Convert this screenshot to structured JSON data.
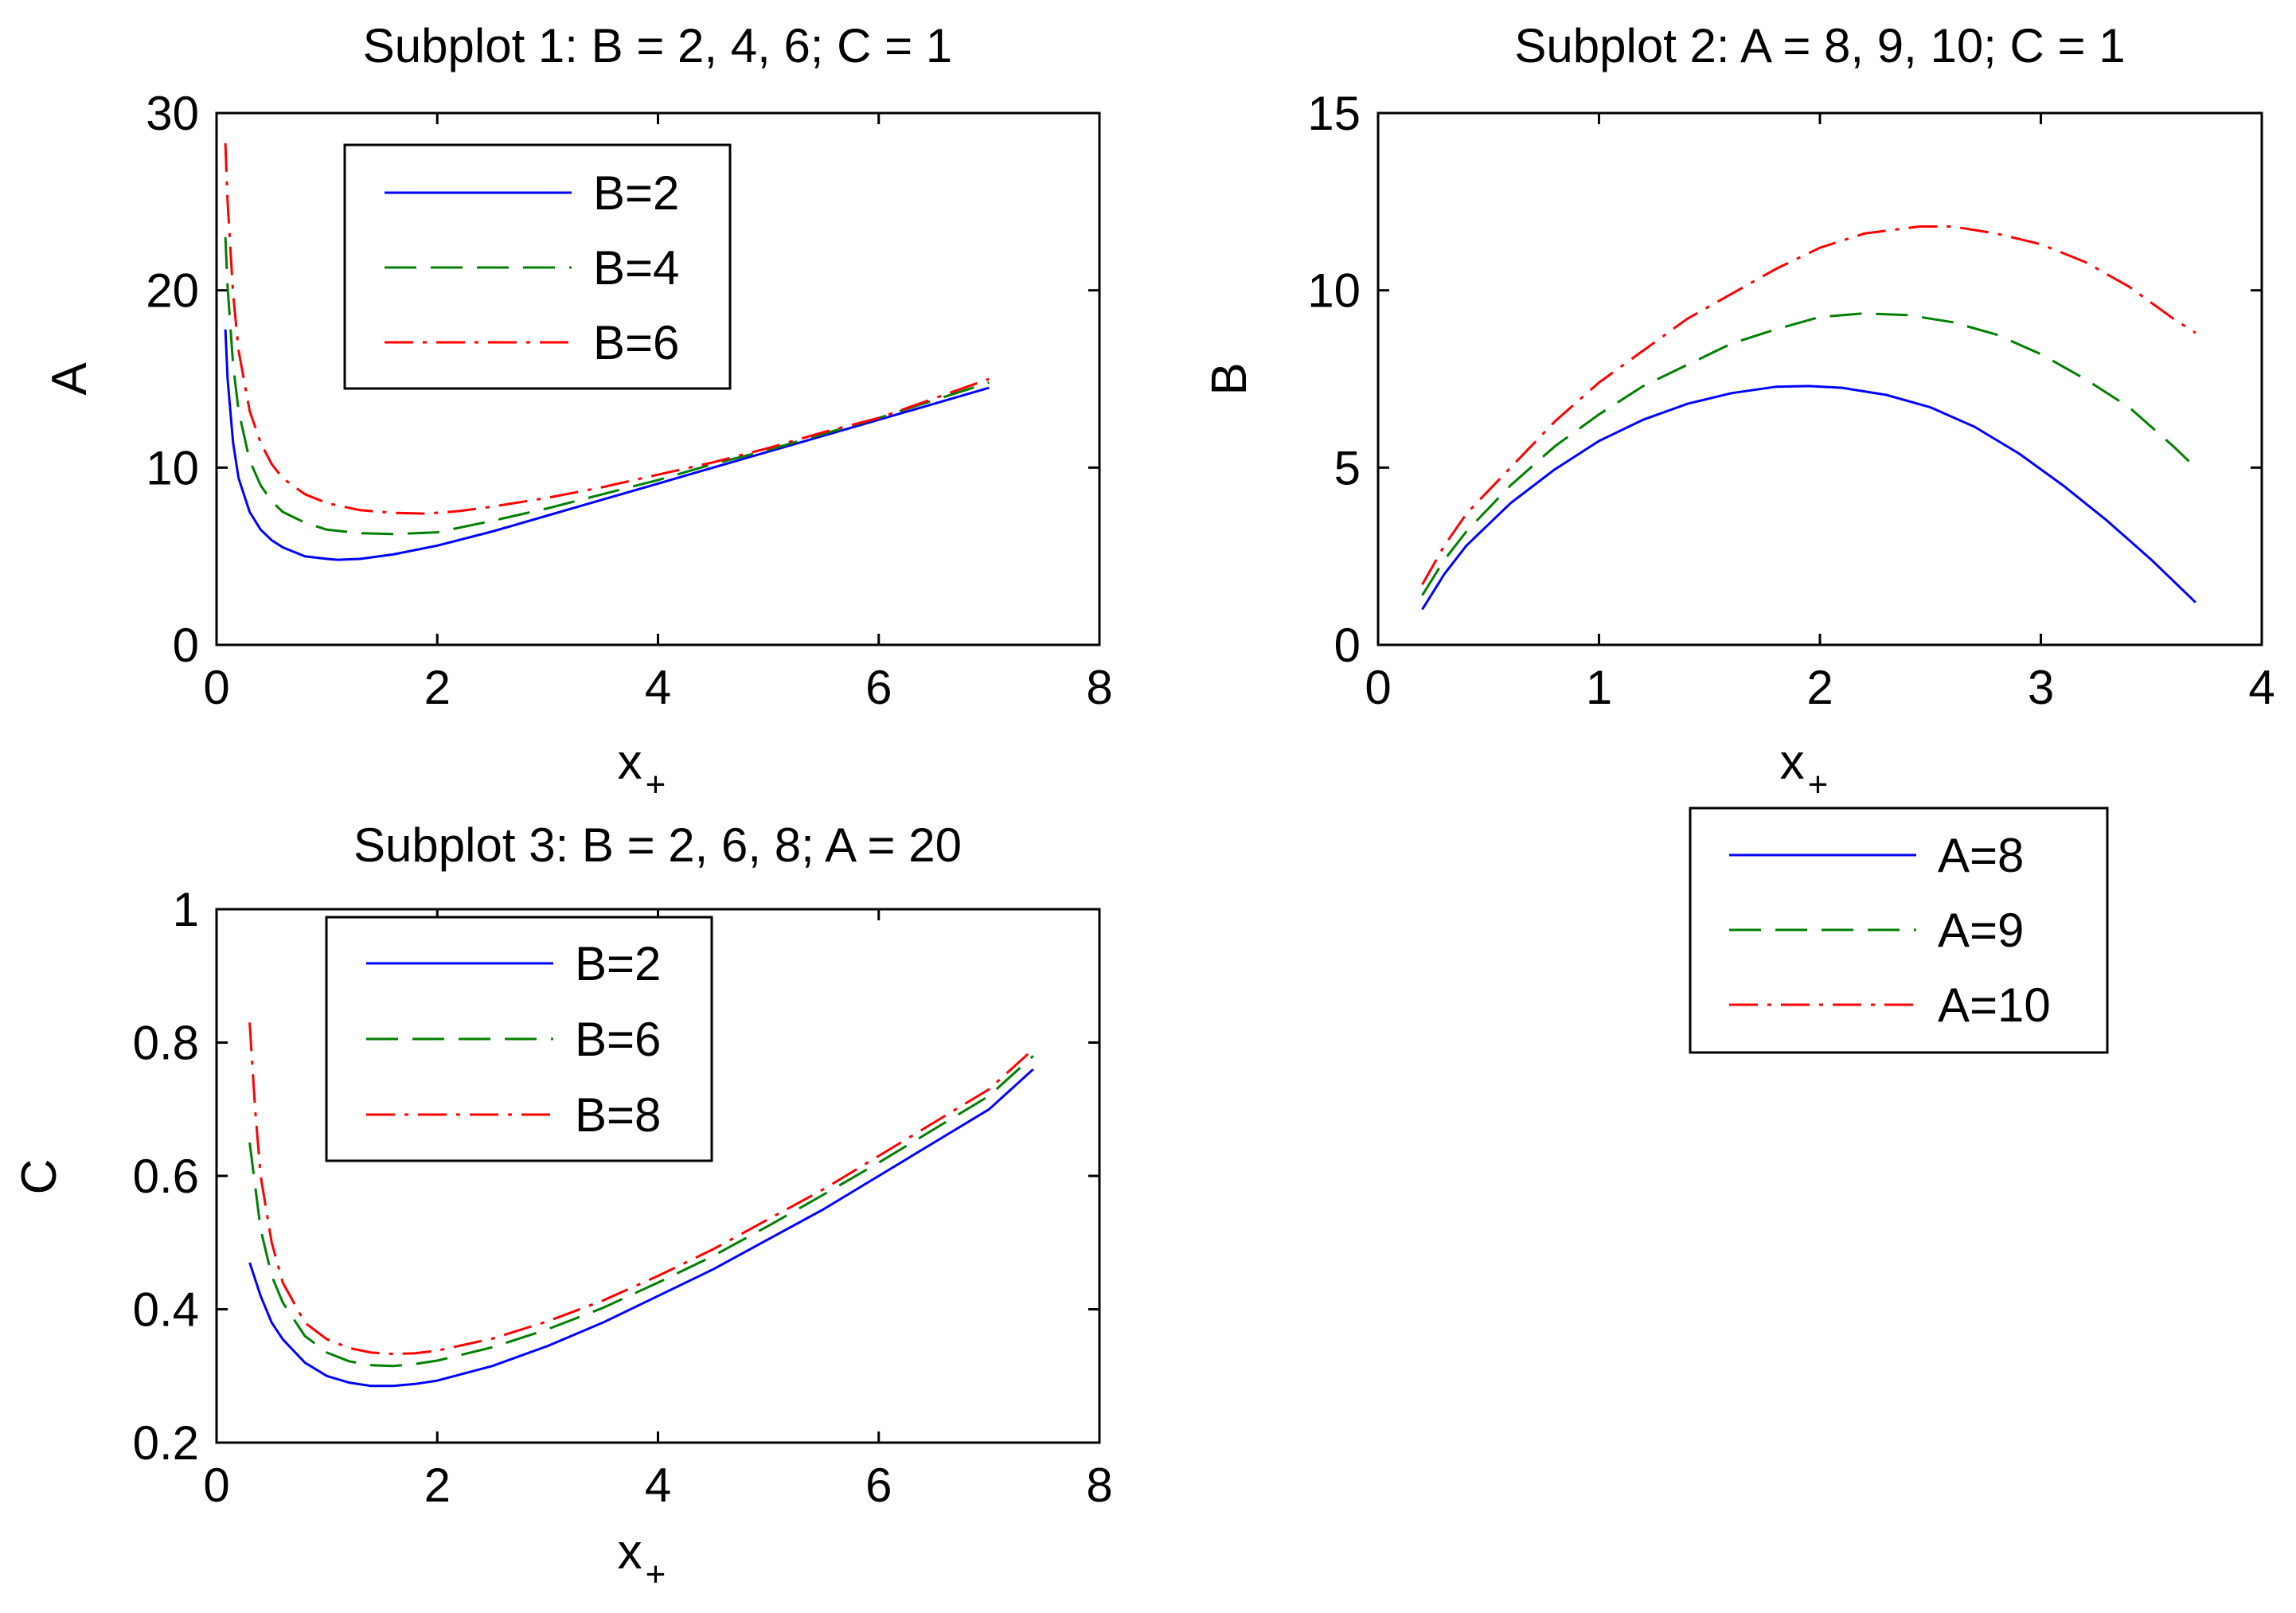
{
  "colors": {
    "blue": "#0000ff",
    "green": "#007f00",
    "red": "#ff0000",
    "axis": "#000000"
  },
  "chart_data": [
    {
      "id": "subplot1",
      "type": "line",
      "title": "Subplot 1: B = 2, 4, 6; C = 1",
      "xlabel": "x",
      "xlabel_sub": "+",
      "ylabel": "A",
      "xlim": [
        0,
        8
      ],
      "ylim": [
        0,
        30
      ],
      "xticks": [
        0,
        2,
        4,
        6,
        8
      ],
      "yticks": [
        0,
        10,
        20,
        30
      ],
      "xtick_labels": [
        "0",
        "2",
        "4",
        "6",
        "8"
      ],
      "ytick_labels": [
        "0",
        "10",
        "20",
        "30"
      ],
      "grid": false,
      "legend": "inside-top-left",
      "series": [
        {
          "name": "B=2",
          "style": "solid",
          "color": "#0000ff",
          "x": [
            0.08,
            0.1,
            0.15,
            0.2,
            0.3,
            0.4,
            0.5,
            0.6,
            0.8,
            1.0,
            1.1,
            1.3,
            1.6,
            2.0,
            2.5,
            3.0,
            3.5,
            4.0,
            4.5,
            5.0,
            5.5,
            6.0,
            6.5,
            7.0
          ],
          "y": [
            17.8,
            15.0,
            11.4,
            9.4,
            7.5,
            6.5,
            5.9,
            5.5,
            5.0,
            4.85,
            4.8,
            4.85,
            5.1,
            5.6,
            6.4,
            7.3,
            8.2,
            9.1,
            10.0,
            10.9,
            11.8,
            12.7,
            13.6,
            14.5
          ]
        },
        {
          "name": "B=4",
          "style": "dashed",
          "color": "#007f00",
          "x": [
            0.08,
            0.1,
            0.15,
            0.2,
            0.3,
            0.4,
            0.5,
            0.6,
            0.8,
            1.0,
            1.3,
            1.6,
            2.0,
            2.5,
            3.0,
            3.5,
            4.0,
            4.5,
            5.0,
            5.5,
            6.0,
            6.5,
            7.0
          ],
          "y": [
            23.0,
            20.2,
            15.8,
            13.2,
            10.4,
            9.0,
            8.1,
            7.5,
            6.9,
            6.5,
            6.3,
            6.25,
            6.35,
            7.0,
            7.7,
            8.5,
            9.3,
            10.2,
            11.0,
            11.9,
            12.8,
            13.8,
            14.8
          ]
        },
        {
          "name": "B=6",
          "style": "dashdot",
          "color": "#ff0000",
          "x": [
            0.08,
            0.1,
            0.15,
            0.2,
            0.3,
            0.4,
            0.5,
            0.6,
            0.8,
            1.0,
            1.3,
            1.6,
            1.9,
            2.2,
            2.5,
            3.0,
            3.5,
            4.0,
            4.5,
            5.0,
            5.5,
            6.0,
            6.5,
            7.0
          ],
          "y": [
            28.3,
            25.0,
            19.8,
            16.6,
            13.2,
            11.4,
            10.2,
            9.4,
            8.5,
            8.0,
            7.6,
            7.45,
            7.4,
            7.55,
            7.8,
            8.3,
            8.9,
            9.6,
            10.3,
            11.1,
            12.0,
            12.8,
            13.9,
            15.0
          ]
        }
      ]
    },
    {
      "id": "subplot2",
      "type": "line",
      "title": "Subplot 2: A = 8, 9, 10; C = 1",
      "xlabel": "x",
      "xlabel_sub": "+",
      "ylabel": "B",
      "xlim": [
        0,
        4
      ],
      "ylim": [
        0,
        15
      ],
      "xticks": [
        0,
        1,
        2,
        3,
        4
      ],
      "yticks": [
        0,
        5,
        10,
        15
      ],
      "xtick_labels": [
        "0",
        "1",
        "2",
        "3",
        "4"
      ],
      "ytick_labels": [
        "0",
        "5",
        "10",
        "15"
      ],
      "grid": false,
      "legend": "outside-below",
      "series": [
        {
          "name": "A=8",
          "style": "solid",
          "color": "#0000ff",
          "x": [
            0.2,
            0.3,
            0.4,
            0.6,
            0.8,
            1.0,
            1.2,
            1.4,
            1.6,
            1.8,
            1.95,
            2.1,
            2.3,
            2.5,
            2.7,
            2.9,
            3.1,
            3.3,
            3.5,
            3.7
          ],
          "y": [
            1.0,
            2.0,
            2.8,
            4.0,
            4.95,
            5.75,
            6.35,
            6.8,
            7.1,
            7.28,
            7.3,
            7.25,
            7.05,
            6.7,
            6.15,
            5.4,
            4.5,
            3.5,
            2.4,
            1.2
          ]
        },
        {
          "name": "A=9",
          "style": "dashed",
          "color": "#007f00",
          "x": [
            0.2,
            0.3,
            0.4,
            0.6,
            0.8,
            1.0,
            1.2,
            1.4,
            1.6,
            1.8,
            2.0,
            2.2,
            2.4,
            2.6,
            2.8,
            3.0,
            3.2,
            3.4,
            3.6,
            3.7
          ],
          "y": [
            1.4,
            2.4,
            3.2,
            4.5,
            5.6,
            6.5,
            7.3,
            7.9,
            8.5,
            8.9,
            9.25,
            9.35,
            9.3,
            9.1,
            8.75,
            8.2,
            7.5,
            6.7,
            5.6,
            5.0
          ]
        },
        {
          "name": "A=10",
          "style": "dashdot",
          "color": "#ff0000",
          "x": [
            0.2,
            0.3,
            0.4,
            0.6,
            0.8,
            1.0,
            1.2,
            1.4,
            1.6,
            1.8,
            2.0,
            2.2,
            2.45,
            2.6,
            2.8,
            3.0,
            3.2,
            3.4,
            3.6,
            3.7
          ],
          "y": [
            1.7,
            2.8,
            3.7,
            5.0,
            6.3,
            7.4,
            8.3,
            9.2,
            9.9,
            10.6,
            11.2,
            11.6,
            11.8,
            11.8,
            11.6,
            11.3,
            10.8,
            10.1,
            9.2,
            8.8
          ]
        }
      ]
    },
    {
      "id": "subplot3",
      "type": "line",
      "title": "Subplot 3: B = 2, 6, 8; A = 20",
      "xlabel": "x",
      "xlabel_sub": "+",
      "ylabel": "C",
      "xlim": [
        0,
        8
      ],
      "ylim": [
        0.2,
        1
      ],
      "xticks": [
        0,
        2,
        4,
        6,
        8
      ],
      "yticks": [
        0.2,
        0.4,
        0.6,
        0.8,
        1
      ],
      "xtick_labels": [
        "0",
        "2",
        "4",
        "6",
        "8"
      ],
      "ytick_labels": [
        "0.2",
        "0.4",
        "0.6",
        "0.8",
        "1"
      ],
      "grid": false,
      "legend": "inside-top-left",
      "series": [
        {
          "name": "B=2",
          "style": "solid",
          "color": "#0000ff",
          "x": [
            0.3,
            0.4,
            0.5,
            0.6,
            0.8,
            1.0,
            1.2,
            1.4,
            1.6,
            1.8,
            2.0,
            2.5,
            3.0,
            3.5,
            4.0,
            4.5,
            5.0,
            5.5,
            6.0,
            6.5,
            7.0,
            7.4
          ],
          "y": [
            0.47,
            0.42,
            0.38,
            0.355,
            0.32,
            0.3,
            0.29,
            0.285,
            0.285,
            0.288,
            0.293,
            0.315,
            0.345,
            0.38,
            0.42,
            0.46,
            0.505,
            0.55,
            0.6,
            0.65,
            0.7,
            0.76
          ]
        },
        {
          "name": "B=6",
          "style": "dashed",
          "color": "#007f00",
          "x": [
            0.3,
            0.4,
            0.5,
            0.6,
            0.8,
            1.0,
            1.2,
            1.4,
            1.6,
            1.8,
            2.0,
            2.5,
            3.0,
            3.5,
            4.0,
            4.5,
            5.0,
            5.5,
            6.0,
            6.5,
            7.0,
            7.4
          ],
          "y": [
            0.65,
            0.52,
            0.45,
            0.41,
            0.36,
            0.335,
            0.322,
            0.316,
            0.315,
            0.318,
            0.323,
            0.343,
            0.37,
            0.402,
            0.44,
            0.48,
            0.525,
            0.572,
            0.62,
            0.67,
            0.72,
            0.78
          ]
        },
        {
          "name": "B=8",
          "style": "dashdot",
          "color": "#ff0000",
          "x": [
            0.3,
            0.35,
            0.4,
            0.5,
            0.6,
            0.8,
            1.0,
            1.2,
            1.4,
            1.6,
            1.8,
            2.0,
            2.5,
            3.0,
            3.5,
            4.0,
            4.5,
            5.0,
            5.5,
            6.0,
            6.5,
            7.0,
            7.4
          ],
          "y": [
            0.83,
            0.7,
            0.6,
            0.5,
            0.44,
            0.38,
            0.355,
            0.342,
            0.335,
            0.333,
            0.334,
            0.338,
            0.356,
            0.382,
            0.413,
            0.45,
            0.49,
            0.535,
            0.58,
            0.63,
            0.68,
            0.73,
            0.79
          ]
        }
      ]
    }
  ]
}
